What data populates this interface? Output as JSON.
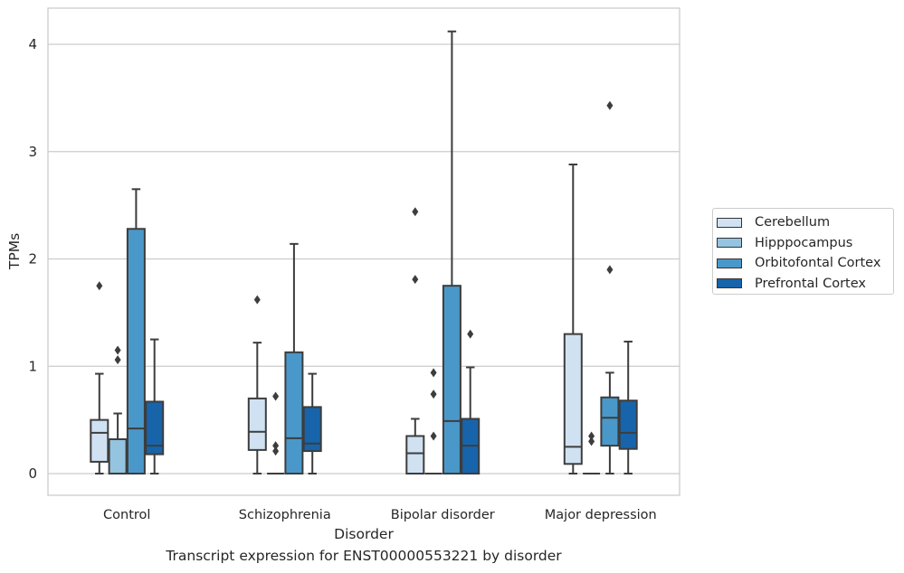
{
  "chart_data": {
    "type": "boxplot",
    "xlabel": "Disorder",
    "ylabel": "TPMs",
    "ylim": [
      -0.2,
      4.33
    ],
    "yticks": [
      0,
      1,
      2,
      3,
      4
    ],
    "grid": true,
    "legend_position": "right",
    "categories": [
      "Control",
      "Schizophrenia",
      "Bipolar disorder",
      "Major depression"
    ],
    "series": [
      {
        "name": "Cerebellum",
        "color": "#d0e1f2",
        "boxes": [
          {
            "min": 0.0,
            "q1": 0.11,
            "median": 0.38,
            "q3": 0.5,
            "max": 0.93,
            "outliers": [
              1.75
            ]
          },
          {
            "min": 0.0,
            "q1": 0.22,
            "median": 0.39,
            "q3": 0.7,
            "max": 1.22,
            "outliers": [
              1.62
            ]
          },
          {
            "min": 0.0,
            "q1": 0.0,
            "median": 0.19,
            "q3": 0.35,
            "max": 0.51,
            "outliers": [
              1.81,
              2.44
            ]
          },
          {
            "min": 0.0,
            "q1": 0.09,
            "median": 0.25,
            "q3": 1.3,
            "max": 2.88,
            "outliers": []
          }
        ]
      },
      {
        "name": "Hipppocampus",
        "color": "#94c4df",
        "boxes": [
          {
            "min": 0.0,
            "q1": 0.0,
            "median": 0.0,
            "q3": 0.32,
            "max": 0.56,
            "outliers": [
              1.06,
              1.15
            ]
          },
          {
            "min": 0.0,
            "q1": 0.0,
            "median": 0.0,
            "q3": 0.0,
            "max": 0.0,
            "outliers": [
              0.21,
              0.26,
              0.72
            ]
          },
          {
            "min": 0.0,
            "q1": 0.0,
            "median": 0.0,
            "q3": 0.0,
            "max": 0.0,
            "outliers": [
              0.35,
              0.74,
              0.94
            ]
          },
          {
            "min": 0.0,
            "q1": 0.0,
            "median": 0.0,
            "q3": 0.0,
            "max": 0.0,
            "outliers": [
              0.3,
              0.35
            ]
          }
        ]
      },
      {
        "name": "Orbitofontal Cortex",
        "color": "#4a98c9",
        "boxes": [
          {
            "min": 0.0,
            "q1": 0.0,
            "median": 0.42,
            "q3": 2.28,
            "max": 2.65,
            "outliers": []
          },
          {
            "min": 0.0,
            "q1": 0.0,
            "median": 0.33,
            "q3": 1.13,
            "max": 2.14,
            "outliers": []
          },
          {
            "min": 0.0,
            "q1": 0.0,
            "median": 0.49,
            "q3": 1.75,
            "max": 4.12,
            "outliers": []
          },
          {
            "min": 0.0,
            "q1": 0.26,
            "median": 0.52,
            "q3": 0.71,
            "max": 0.94,
            "outliers": [
              1.9,
              3.43
            ]
          }
        ]
      },
      {
        "name": "Prefrontal Cortex",
        "color": "#1764ab",
        "boxes": [
          {
            "min": 0.0,
            "q1": 0.18,
            "median": 0.26,
            "q3": 0.67,
            "max": 1.25,
            "outliers": []
          },
          {
            "min": 0.0,
            "q1": 0.21,
            "median": 0.28,
            "q3": 0.62,
            "max": 0.93,
            "outliers": []
          },
          {
            "min": 0.0,
            "q1": 0.0,
            "median": 0.26,
            "q3": 0.51,
            "max": 0.99,
            "outliers": [
              1.3
            ]
          },
          {
            "min": 0.0,
            "q1": 0.23,
            "median": 0.38,
            "q3": 0.68,
            "max": 1.23,
            "outliers": []
          }
        ]
      }
    ]
  },
  "caption": "Transcript expression for ENST00000553221 by disorder"
}
